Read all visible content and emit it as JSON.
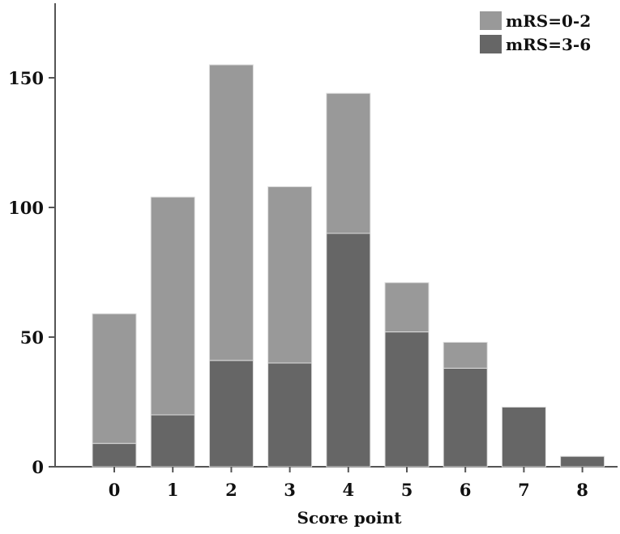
{
  "chart_data": {
    "type": "bar",
    "stacked": true,
    "categories": [
      "0",
      "1",
      "2",
      "3",
      "4",
      "5",
      "6",
      "7",
      "8"
    ],
    "series": [
      {
        "name": "mRS=3-6",
        "color": "#666666",
        "values": [
          9,
          20,
          41,
          40,
          90,
          52,
          38,
          23,
          4
        ]
      },
      {
        "name": "mRS=0-2",
        "color": "#999999",
        "values": [
          50,
          84,
          114,
          68,
          54,
          19,
          10,
          0,
          0
        ]
      }
    ],
    "legend_order": [
      "mRS=0-2",
      "mRS=3-6"
    ],
    "legend_position": "top-right",
    "xlabel": "Score point",
    "ylabel": "",
    "ylim": [
      0,
      178
    ],
    "yticks": [
      "0",
      "50",
      "100",
      "150"
    ],
    "grid": false
  }
}
